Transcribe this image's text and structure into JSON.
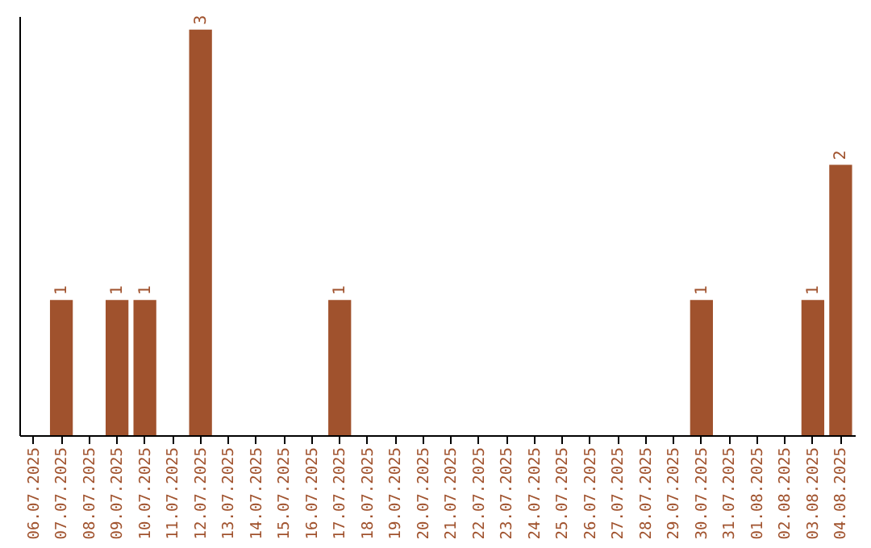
{
  "chart_data": {
    "type": "bar",
    "categories": [
      "06.07.2025",
      "07.07.2025",
      "08.07.2025",
      "09.07.2025",
      "10.07.2025",
      "11.07.2025",
      "12.07.2025",
      "13.07.2025",
      "14.07.2025",
      "15.07.2025",
      "16.07.2025",
      "17.07.2025",
      "18.07.2025",
      "19.07.2025",
      "20.07.2025",
      "21.07.2025",
      "22.07.2025",
      "23.07.2025",
      "24.07.2025",
      "25.07.2025",
      "26.07.2025",
      "27.07.2025",
      "28.07.2025",
      "29.07.2025",
      "30.07.2025",
      "31.07.2025",
      "01.08.2025",
      "02.08.2025",
      "03.08.2025",
      "04.08.2025"
    ],
    "values": [
      null,
      1,
      null,
      1,
      1,
      null,
      3,
      null,
      null,
      null,
      null,
      1,
      null,
      null,
      null,
      null,
      null,
      null,
      null,
      null,
      null,
      null,
      null,
      null,
      1,
      null,
      null,
      null,
      1,
      2
    ],
    "color": "#a0522d",
    "ylim": [
      0,
      3.1
    ],
    "data_labels": true,
    "tick_labels": "x",
    "grid": false
  }
}
